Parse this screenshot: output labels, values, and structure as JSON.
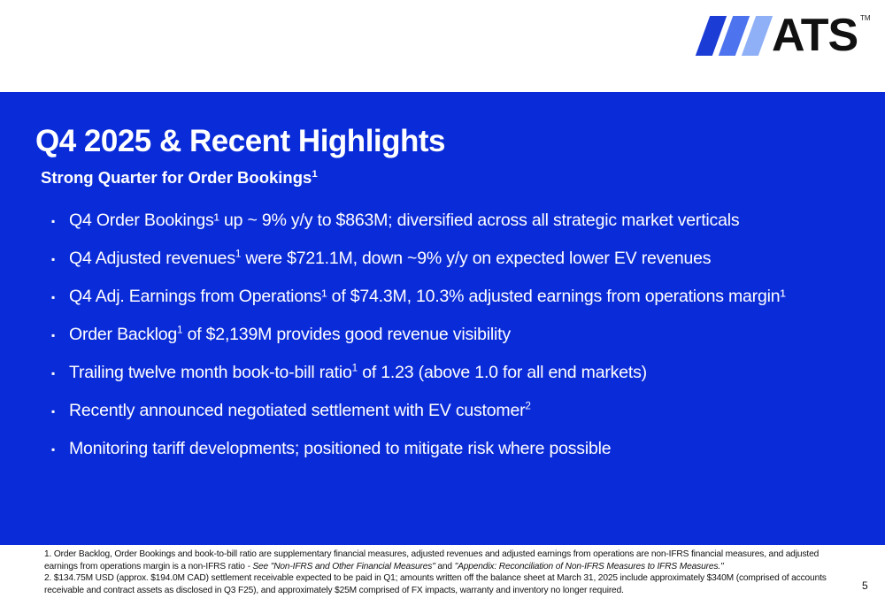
{
  "colors": {
    "panel_blue": "#0a2bd8",
    "logo_stripe_dark": "#1c3cd6",
    "logo_stripe_mid": "#4d74ee",
    "logo_stripe_light": "#8fb0f7",
    "logo_text": "#111111"
  },
  "logo": {
    "text": "ATS",
    "trademark": "TM",
    "stripes": [
      "dark",
      "mid",
      "light"
    ]
  },
  "slide": {
    "title": "Q4 2025 & Recent Highlights",
    "subtitle": "Strong Quarter for Order Bookings",
    "subtitle_sup": "1",
    "bullet_marker": "▪",
    "bullets": [
      {
        "text": "Q4 Order Bookings¹ up ~ 9% y/y to $863M; diversified across all strategic market verticals"
      },
      {
        "text": "Q4 Adjusted revenues",
        "sup": "1",
        "after": " were $721.1M, down ~9% y/y  on expected lower EV revenues"
      },
      {
        "text": "Q4 Adj. Earnings from Operations¹ of $74.3M, 10.3% adjusted earnings from operations margin¹"
      },
      {
        "text": "Order Backlog",
        "sup": "1",
        "after": " of $2,139M provides good revenue visibility"
      },
      {
        "text": "Trailing twelve month book-to-bill ratio",
        "sup": "1",
        "after": " of 1.23 (above 1.0 for all end markets)"
      },
      {
        "text": "Recently announced negotiated settlement with EV customer",
        "sup": "2",
        "after": ""
      },
      {
        "text": "Monitoring tariff developments; positioned to mitigate risk where possible"
      }
    ]
  },
  "footnotes": {
    "note1_plain": "1. Order Backlog, Order Bookings and book-to-bill ratio are supplementary financial measures, adjusted revenues and adjusted earnings from operations are non-IFRS financial measures, and adjusted earnings from operations margin is a non-IFRS ratio ",
    "note1_ref_a": " - See \"Non-IFRS and Other Financial Measures\"",
    "note1_and": " and ",
    "note1_ref_b": "\"Appendix: Reconciliation of Non-IFRS Measures to IFRS Measures.\"",
    "note2": "2.  $134.75M USD (approx. $194.0M CAD) settlement receivable expected to be paid in Q1; amounts written off the balance sheet at March 31, 2025 include approximately $340M (comprised of accounts receivable and contract assets as disclosed in Q3 F25), and approximately $25M comprised of FX impacts, warranty and inventory no longer required."
  },
  "page_number": "5"
}
